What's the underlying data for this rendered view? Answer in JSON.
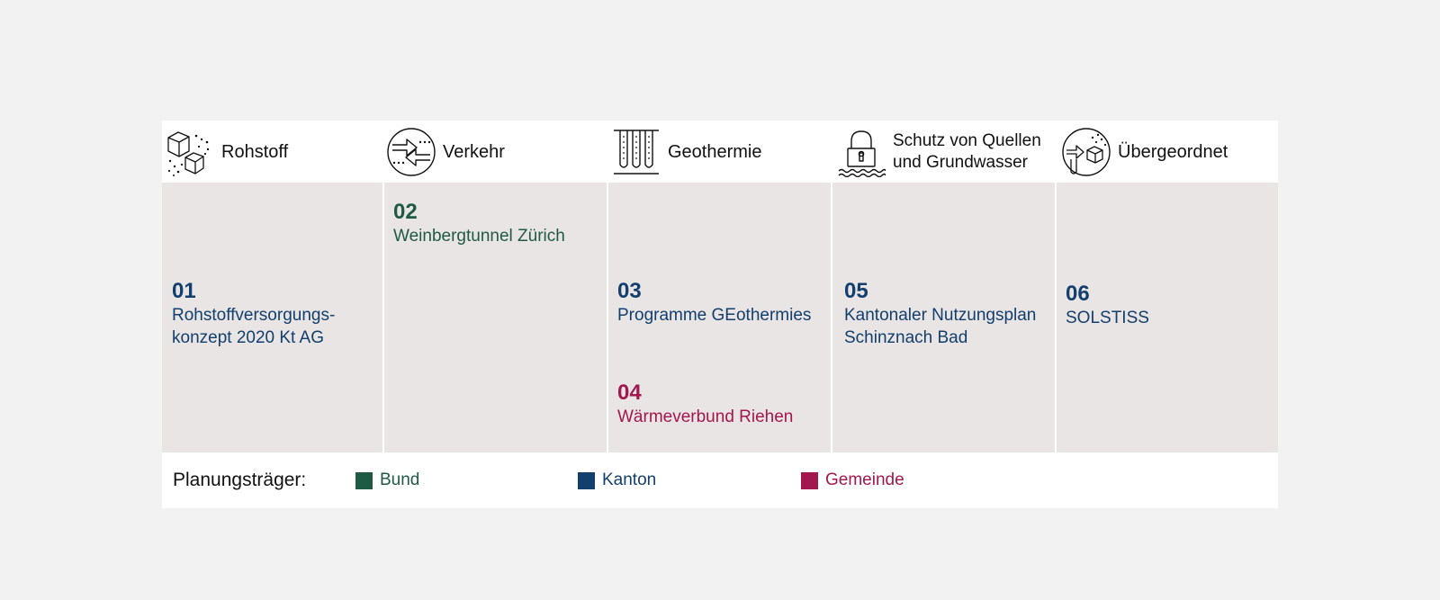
{
  "colors": {
    "bund": "#1f5a45",
    "kanton": "#123f6e",
    "gemeinde": "#a3174f"
  },
  "categories": [
    {
      "label": "Rohstoff",
      "icon": "cubes-icon"
    },
    {
      "label": "Verkehr",
      "icon": "traffic-arrows-icon"
    },
    {
      "label": "Geothermie",
      "icon": "geothermal-probes-icon"
    },
    {
      "label_line1": "Schutz von Quellen",
      "label_line2": "und Grundwasser",
      "icon": "lock-water-icon"
    },
    {
      "label": "Übergeordnet",
      "icon": "combined-icon"
    }
  ],
  "projects": [
    {
      "number": "01",
      "name_line1": "Rohstoffversorgungs-",
      "name_line2": "konzept 2020 Kt AG",
      "carrier": "Kanton"
    },
    {
      "number": "02",
      "name": "Weinbergtunnel Zürich",
      "carrier": "Bund"
    },
    {
      "number": "03",
      "name": "Programme GEothermies",
      "carrier": "Kanton"
    },
    {
      "number": "04",
      "name": "Wärmeverbund Riehen",
      "carrier": "Gemeinde"
    },
    {
      "number": "05",
      "name_line1": "Kantonaler Nutzungsplan",
      "name_line2": "Schinznach Bad",
      "carrier": "Kanton"
    },
    {
      "number": "06",
      "name": "SOLSTISS",
      "carrier": "Kanton"
    }
  ],
  "legend": {
    "title": "Planungsträger:",
    "items": [
      {
        "label": "Bund"
      },
      {
        "label": "Kanton"
      },
      {
        "label": "Gemeinde"
      }
    ]
  }
}
